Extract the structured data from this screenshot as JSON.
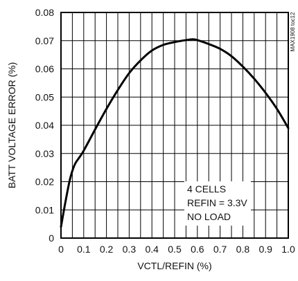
{
  "chart_data": {
    "type": "line",
    "title": "",
    "xlabel": "VCTL/REFIN (%)",
    "ylabel": "BATT VOLTAGE ERROR (%)",
    "xlim": [
      0,
      1.0
    ],
    "ylim": [
      0,
      0.08
    ],
    "x_ticks": [
      "0",
      "0.1",
      "0.2",
      "0.3",
      "0.4",
      "0.5",
      "0.6",
      "0.7",
      "0.8",
      "0.9",
      "1.0"
    ],
    "y_ticks": [
      "0",
      "0.01",
      "0.02",
      "0.03",
      "0.04",
      "0.05",
      "0.06",
      "0.07",
      "0.08"
    ],
    "grid": true,
    "annotation": [
      "4 CELLS",
      "REFIN = 3.3V",
      "NO LOAD"
    ],
    "side_label": "MAX1908 toc12",
    "series": [
      {
        "x": [
          0.0,
          0.02,
          0.04,
          0.06,
          0.08,
          0.1,
          0.15,
          0.2,
          0.25,
          0.3,
          0.35,
          0.4,
          0.45,
          0.5,
          0.55,
          0.58,
          0.6,
          0.65,
          0.7,
          0.75,
          0.8,
          0.85,
          0.9,
          0.95,
          1.0
        ],
        "y": [
          0.004,
          0.013,
          0.021,
          0.026,
          0.0285,
          0.031,
          0.0385,
          0.0458,
          0.0525,
          0.0585,
          0.063,
          0.0665,
          0.0685,
          0.0695,
          0.0702,
          0.0705,
          0.0702,
          0.0688,
          0.0671,
          0.0645,
          0.0608,
          0.0565,
          0.0515,
          0.0458,
          0.039
        ]
      }
    ]
  }
}
